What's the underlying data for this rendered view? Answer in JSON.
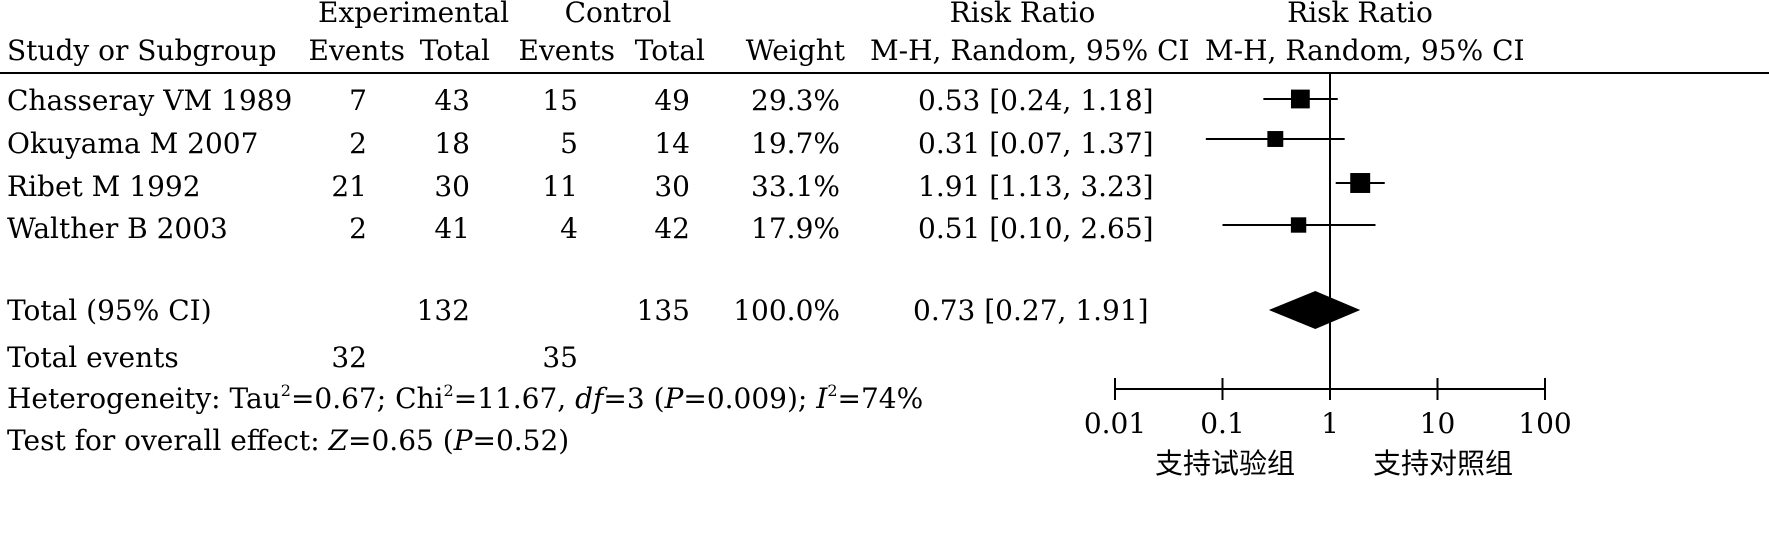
{
  "headers": {
    "group1": "Experimental",
    "group2": "Control",
    "rr_top": "Risk Ratio",
    "rr_top_plot": "Risk Ratio",
    "study": "Study or Subgroup",
    "events1": "Events",
    "total1": "Total",
    "events2": "Events",
    "total2": "Total",
    "weight": "Weight",
    "rr_method": "M-H, Random, 95% CI",
    "rr_method_plot": "M-H, Random, 95% CI"
  },
  "total_row": {
    "label": "Total (95% CI)",
    "total1": "132",
    "total2": "135",
    "weight": "100.0%",
    "ci_text": "0.73 [0.27, 1.91]"
  },
  "events_row": {
    "label": "Total events",
    "events1": "32",
    "events2": "35"
  },
  "heterogeneity": {
    "prefix": "Heterogeneity: Tau",
    "sup1": "2",
    "tau2": "=0.67; Chi",
    "sup2": "2",
    "chi2": "=11.67, ",
    "df_label": "df",
    "df_val": "=3 (",
    "p_label": "P",
    "p_val": "=0.009); ",
    "i_label": "I",
    "sup3": "2",
    "i2": "=74%"
  },
  "overall": {
    "prefix": "Test for overall effect: ",
    "z_label": "Z",
    "z_val": "=0.65 (",
    "p_label": "P",
    "p_val": "=0.52)"
  },
  "axis_labels": {
    "left": "支持试验组",
    "right": "支持对照组"
  },
  "chart_data": {
    "type": "forest",
    "scale": "log",
    "xlim": [
      0.01,
      100
    ],
    "ticks": [
      {
        "value": 0.01,
        "label": "0.01"
      },
      {
        "value": 0.1,
        "label": "0.1"
      },
      {
        "value": 1,
        "label": "1"
      },
      {
        "value": 10,
        "label": "10"
      },
      {
        "value": 100,
        "label": "100"
      }
    ],
    "studies": [
      {
        "name": "Chasseray VM 1989",
        "events1": "7",
        "total1": "43",
        "events2": "15",
        "total2": "49",
        "weight": "29.3%",
        "ci_text": "0.53 [0.24, 1.18]",
        "rr": 0.53,
        "lo": 0.24,
        "hi": 1.18,
        "w": 29.3
      },
      {
        "name": "Okuyama M 2007",
        "events1": "2",
        "total1": "18",
        "events2": "5",
        "total2": "14",
        "weight": "19.7%",
        "ci_text": "0.31 [0.07, 1.37]",
        "rr": 0.31,
        "lo": 0.07,
        "hi": 1.37,
        "w": 19.7
      },
      {
        "name": "Ribet M 1992",
        "events1": "21",
        "total1": "30",
        "events2": "11",
        "total2": "30",
        "weight": "33.1%",
        "ci_text": "1.91 [1.13, 3.23]",
        "rr": 1.91,
        "lo": 1.13,
        "hi": 3.23,
        "w": 33.1
      },
      {
        "name": "Walther B 2003",
        "events1": "2",
        "total1": "41",
        "events2": "4",
        "total2": "42",
        "weight": "17.9%",
        "ci_text": "0.51 [0.10, 2.65]",
        "rr": 0.51,
        "lo": 0.1,
        "hi": 2.65,
        "w": 17.9
      }
    ],
    "pooled": {
      "rr": 0.73,
      "lo": 0.27,
      "hi": 1.91
    }
  }
}
